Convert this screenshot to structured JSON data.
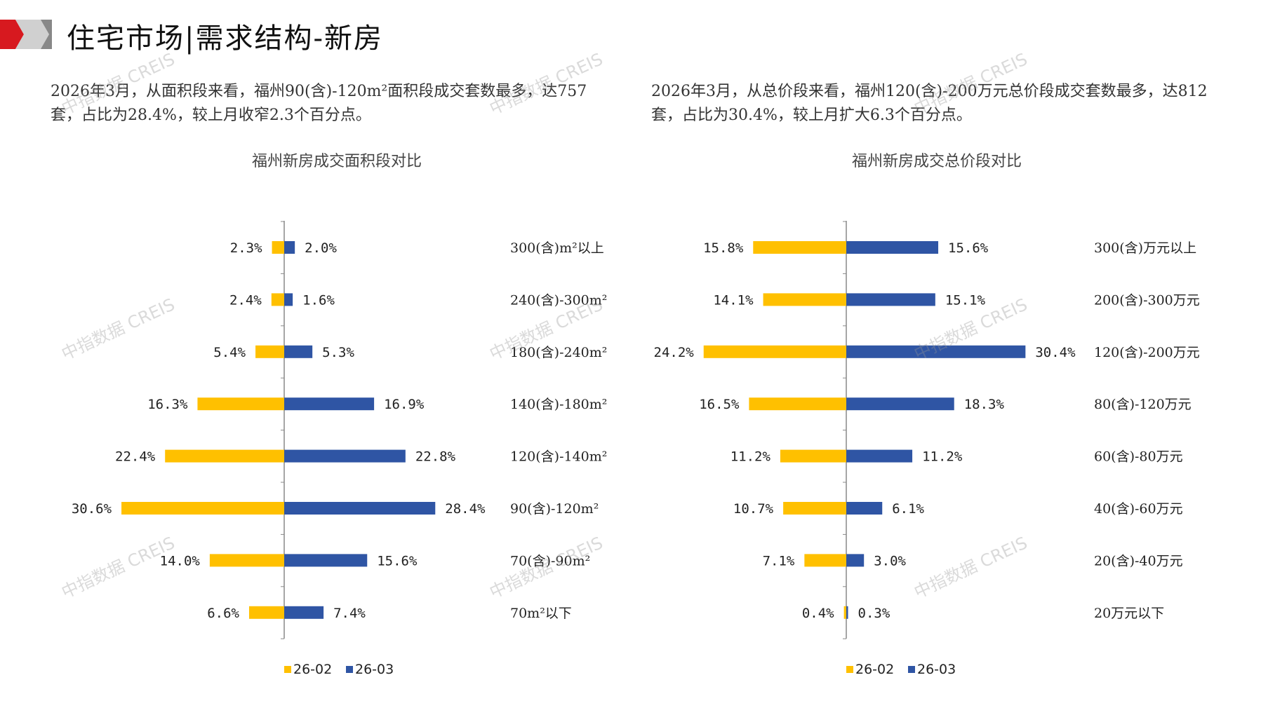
{
  "header": {
    "title": "住宅市场|需求结构-新房"
  },
  "left": {
    "paragraph": "2026年3月，从面积段来看，福州90(含)-120m²面积段成交套数最多，达757套，占比为28.4%，较上月收窄2.3个百分点。"
  },
  "right": {
    "paragraph": "2026年3月，从总价段来看，福州120(含)-200万元总价段成交套数最多，达812套，占比为30.4%，较上月扩大6.3个百分点。"
  },
  "watermark": "中指数据 CREIS",
  "colors": {
    "s1": "#FFC000",
    "s2": "#2F55A4"
  },
  "chart_data": [
    {
      "type": "bar",
      "orientation": "butterfly",
      "title": "福州新房成交面积段对比",
      "categories": [
        "300(含)m²以上",
        "240(含)-300m²",
        "180(含)-240m²",
        "140(含)-180m²",
        "120(含)-140m²",
        "90(含)-120m²",
        "70(含)-90m²",
        "70m²以下"
      ],
      "series": [
        {
          "name": "26-02",
          "values": [
            2.3,
            2.4,
            5.4,
            16.3,
            22.4,
            30.6,
            14.0,
            6.6
          ]
        },
        {
          "name": "26-03",
          "values": [
            2.0,
            1.6,
            5.3,
            16.9,
            22.8,
            28.4,
            15.6,
            7.4
          ]
        }
      ],
      "legend": "bottom",
      "unit": "%"
    },
    {
      "type": "bar",
      "orientation": "butterfly",
      "title": "福州新房成交总价段对比",
      "categories": [
        "300(含)万元以上",
        "200(含)-300万元",
        "120(含)-200万元",
        "80(含)-120万元",
        "60(含)-80万元",
        "40(含)-60万元",
        "20(含)-40万元",
        "20万元以下"
      ],
      "series": [
        {
          "name": "26-02",
          "values": [
            15.8,
            14.1,
            24.2,
            16.5,
            11.2,
            10.7,
            7.1,
            0.4
          ]
        },
        {
          "name": "26-03",
          "values": [
            15.6,
            15.1,
            30.4,
            18.3,
            11.2,
            6.1,
            3.0,
            0.3
          ]
        }
      ],
      "legend": "bottom",
      "unit": "%"
    }
  ]
}
